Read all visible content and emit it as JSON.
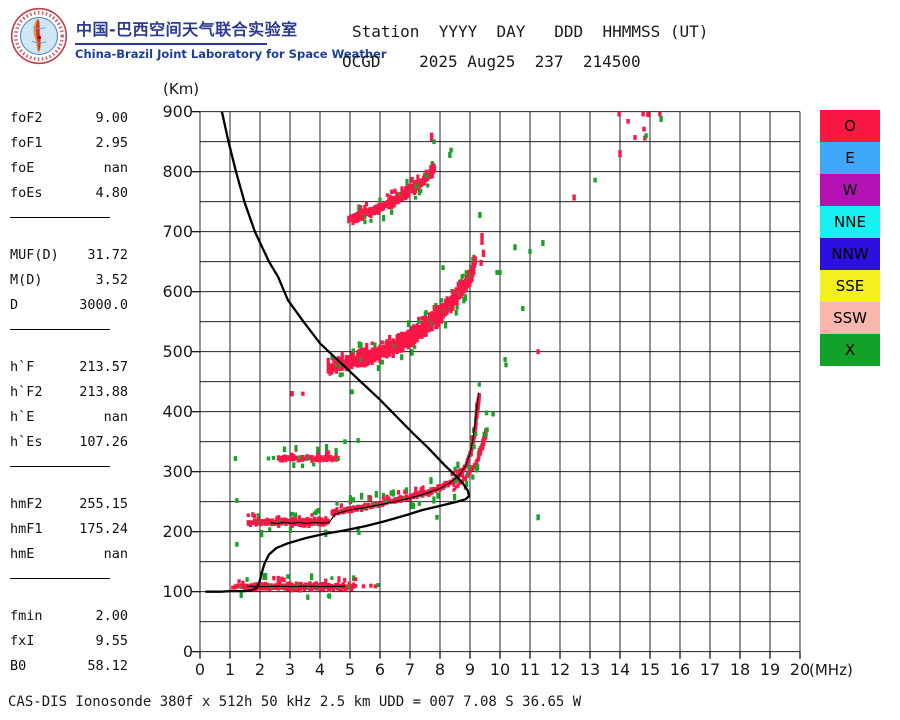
{
  "branding": {
    "title_zh": "中国-巴西空间天气联合实验室",
    "title_en": "China-Brazil Joint Laboratory for Space Weather",
    "title_color": "#2b3a92"
  },
  "header": {
    "line1": "Station  YYYY  DAY   DDD  HHMMSS (UT)",
    "line2": "OCGD    2025 Aug25  237  214500"
  },
  "footer": {
    "text": "CAS-DIS Ionosonde 380f x 512h 50 kHz 2.5 km UDD = 007 7.08 S 36.65 W"
  },
  "parameters": {
    "groups": [
      {
        "rows": [
          [
            "foF2",
            "9.00"
          ],
          [
            "foF1",
            "2.95"
          ],
          [
            "foE",
            "nan"
          ],
          [
            "foEs",
            "4.80"
          ]
        ]
      },
      {
        "rows": [
          [
            "MUF(D)",
            "31.72"
          ],
          [
            "M(D)",
            "3.52"
          ],
          [
            "D",
            "3000.0"
          ]
        ]
      },
      {
        "rows": [
          [
            "h`F",
            "213.57"
          ],
          [
            "h`F2",
            "213.88"
          ],
          [
            "h`E",
            "nan"
          ],
          [
            "h`Es",
            "107.26"
          ]
        ]
      },
      {
        "rows": [
          [
            "hmF2",
            "255.15"
          ],
          [
            "hmF1",
            "175.24"
          ],
          [
            "hmE",
            "nan"
          ]
        ]
      },
      {
        "rows": [
          [
            "fmin",
            "2.00"
          ],
          [
            "fxI",
            "9.55"
          ],
          [
            "B0",
            "58.12"
          ]
        ]
      }
    ]
  },
  "legend": [
    {
      "label": "O",
      "color": "#fb1743"
    },
    {
      "label": "E",
      "color": "#3fa7f7"
    },
    {
      "label": "W",
      "color": "#b412b4"
    },
    {
      "label": "NNE",
      "color": "#18f1f1"
    },
    {
      "label": "NNW",
      "color": "#2b10e0"
    },
    {
      "label": "SSE",
      "color": "#f4f01e"
    },
    {
      "label": "SSW",
      "color": "#f8b6ac"
    },
    {
      "label": "X",
      "color": "#12a22a"
    }
  ],
  "chart_data": {
    "type": "scatter",
    "title": "",
    "xlabel": "(MHz)",
    "ylabel": "(Km)",
    "xlim": [
      0,
      20
    ],
    "ylim": [
      0,
      900
    ],
    "x_ticks": [
      0,
      1,
      2,
      3,
      4,
      5,
      6,
      7,
      8,
      9,
      10,
      11,
      12,
      13,
      14,
      15,
      16,
      17,
      18,
      19,
      20
    ],
    "y_ticks": [
      0,
      100,
      200,
      300,
      400,
      500,
      600,
      700,
      800,
      900
    ],
    "grid": {
      "x_step_mhz": 1,
      "y_step_km": 50
    },
    "echo_colors": {
      "o_mode": "#f81747",
      "x_mode": "#17a426"
    },
    "bands": [
      {
        "name": "Es-first-hop",
        "points": [
          [
            1.1,
            108,
            3.5
          ],
          [
            1.5,
            108,
            4.5
          ],
          [
            2.0,
            109,
            5.5
          ],
          [
            2.6,
            109,
            6
          ],
          [
            3.2,
            108,
            6
          ],
          [
            3.8,
            108,
            6
          ],
          [
            4.4,
            108,
            5.5
          ],
          [
            4.9,
            108,
            5
          ],
          [
            5.25,
            109,
            3.5
          ]
        ]
      },
      {
        "name": "F-flat",
        "points": [
          [
            1.62,
            215,
            3.5
          ],
          [
            2.0,
            216,
            5
          ],
          [
            2.5,
            216,
            5.5
          ],
          [
            3.0,
            216,
            6
          ],
          [
            3.5,
            216,
            6
          ],
          [
            4.0,
            216,
            5.5
          ],
          [
            4.32,
            217,
            5.5
          ]
        ]
      },
      {
        "name": "F-rise-O",
        "points": [
          [
            4.4,
            231,
            5
          ],
          [
            4.7,
            234,
            4.5
          ],
          [
            5.0,
            237,
            4.5
          ],
          [
            5.5,
            241,
            4.5
          ],
          [
            6.0,
            246,
            4.5
          ],
          [
            6.5,
            251,
            4.5
          ],
          [
            7.0,
            257,
            4.5
          ],
          [
            7.5,
            264,
            4.5
          ],
          [
            8.0,
            273,
            4.5
          ],
          [
            8.4,
            284,
            4.5
          ],
          [
            8.7,
            297,
            4.5
          ],
          [
            8.9,
            313,
            5
          ],
          [
            9.05,
            336,
            5
          ],
          [
            9.15,
            362,
            5
          ],
          [
            9.22,
            390,
            5
          ],
          [
            9.28,
            415,
            5
          ],
          [
            9.32,
            432,
            4
          ]
        ]
      },
      {
        "name": "F-rise-X",
        "points": [
          [
            8.45,
            270,
            2.5
          ],
          [
            8.8,
            287,
            2.5
          ],
          [
            9.1,
            305,
            2.5
          ],
          [
            9.3,
            325,
            3
          ],
          [
            9.45,
            345,
            3
          ],
          [
            9.55,
            364,
            3
          ]
        ]
      },
      {
        "name": "F-second-hop",
        "points": [
          [
            4.28,
            471,
            7
          ],
          [
            4.6,
            477,
            9
          ],
          [
            5.0,
            483,
            10
          ],
          [
            5.5,
            490,
            11
          ],
          [
            6.0,
            498,
            11
          ],
          [
            6.5,
            509,
            12
          ],
          [
            7.0,
            523,
            12
          ],
          [
            7.5,
            541,
            12
          ],
          [
            8.0,
            562,
            13
          ],
          [
            8.4,
            582,
            12
          ],
          [
            8.7,
            600,
            11
          ],
          [
            9.0,
            620,
            10
          ],
          [
            9.12,
            640,
            8
          ],
          [
            9.2,
            655,
            6
          ]
        ]
      },
      {
        "name": "Es-third-hop",
        "points": [
          [
            2.62,
            322,
            4
          ],
          [
            3.0,
            322,
            4.5
          ],
          [
            3.4,
            322,
            4.5
          ],
          [
            3.8,
            322,
            4.5
          ],
          [
            4.1,
            322,
            4
          ],
          [
            4.35,
            322,
            4
          ],
          [
            4.55,
            322,
            3
          ],
          [
            4.68,
            321,
            3
          ]
        ]
      },
      {
        "name": "F-third-hop",
        "points": [
          [
            4.97,
            720,
            6
          ],
          [
            5.3,
            726,
            7
          ],
          [
            5.7,
            733,
            7
          ],
          [
            6.0,
            740,
            7
          ],
          [
            6.4,
            750,
            8
          ],
          [
            6.8,
            762,
            8
          ],
          [
            7.2,
            776,
            8
          ],
          [
            7.5,
            788,
            7
          ],
          [
            7.7,
            797,
            7
          ],
          [
            7.85,
            806,
            6
          ]
        ]
      }
    ],
    "scatter": {
      "red": [
        [
          13.97,
          896,
          8
        ],
        [
          14.27,
          884,
          8
        ],
        [
          14.5,
          857,
          8
        ],
        [
          14.77,
          896,
          8
        ],
        [
          14.93,
          896,
          10
        ],
        [
          15.33,
          896,
          8
        ],
        [
          14.8,
          871,
          8
        ],
        [
          14.83,
          856,
          8
        ],
        [
          14.0,
          830,
          12
        ],
        [
          12.47,
          757,
          10
        ],
        [
          3.07,
          430,
          9
        ],
        [
          3.43,
          430,
          7
        ],
        [
          9.4,
          688,
          20
        ],
        [
          9.45,
          664,
          12
        ],
        [
          9.37,
          648,
          10
        ],
        [
          11.27,
          500,
          8
        ],
        [
          7.72,
          858,
          14
        ],
        [
          5.45,
          109,
          6
        ],
        [
          5.7,
          110,
          5
        ],
        [
          5.85,
          109,
          4
        ]
      ],
      "green": [
        [
          13.17,
          786,
          8
        ],
        [
          15.37,
          888,
          10
        ],
        [
          14.87,
          860,
          8
        ],
        [
          9.33,
          728,
          10
        ],
        [
          10.0,
          632,
          8
        ],
        [
          10.5,
          674,
          10
        ],
        [
          11.0,
          667,
          8
        ],
        [
          11.43,
          681,
          10
        ],
        [
          10.76,
          572,
          8
        ],
        [
          11.27,
          224,
          10
        ],
        [
          7.9,
          224,
          8
        ],
        [
          5.27,
          205,
          8
        ],
        [
          5.3,
          198,
          6
        ],
        [
          1.23,
          179,
          8
        ],
        [
          1.23,
          252,
          8
        ],
        [
          4.83,
          350,
          8
        ],
        [
          5.27,
          352,
          8
        ],
        [
          5.07,
          433,
          8
        ],
        [
          8.33,
          828,
          10
        ],
        [
          8.37,
          836,
          8
        ],
        [
          8.1,
          640,
          8
        ],
        [
          9.9,
          632,
          8
        ],
        [
          10.17,
          487,
          8
        ],
        [
          10.2,
          478,
          8
        ],
        [
          9.55,
          398,
          8
        ],
        [
          9.57,
          370,
          8
        ],
        [
          9.77,
          396,
          8
        ],
        [
          7.8,
          850,
          8
        ],
        [
          1.18,
          322,
          8
        ],
        [
          2.28,
          322,
          6
        ],
        [
          2.45,
          323,
          6
        ],
        [
          5.93,
          111,
          5
        ]
      ]
    },
    "profile_points": [
      [
        0.18,
        100
      ],
      [
        0.7,
        100
      ],
      [
        1.0,
        101
      ],
      [
        1.5,
        101
      ],
      [
        1.75,
        103
      ],
      [
        1.9,
        107
      ],
      [
        1.98,
        116
      ],
      [
        2.05,
        130
      ],
      [
        2.15,
        147
      ],
      [
        2.3,
        162
      ],
      [
        2.55,
        173
      ],
      [
        2.95,
        181
      ],
      [
        3.5,
        189
      ],
      [
        4.1,
        196
      ],
      [
        4.8,
        202
      ],
      [
        5.5,
        209
      ],
      [
        6.2,
        218
      ],
      [
        6.9,
        228
      ],
      [
        7.4,
        236
      ],
      [
        8.0,
        243
      ],
      [
        8.5,
        249
      ],
      [
        8.85,
        254
      ],
      [
        8.97,
        259
      ],
      [
        8.93,
        268
      ],
      [
        8.73,
        283
      ],
      [
        8.45,
        297
      ],
      [
        8.17,
        310
      ],
      [
        7.6,
        340
      ],
      [
        7.1,
        364
      ],
      [
        6.55,
        392
      ],
      [
        6.0,
        420
      ],
      [
        5.4,
        448
      ],
      [
        4.83,
        475
      ],
      [
        4.4,
        495
      ],
      [
        4.0,
        514
      ],
      [
        3.45,
        550
      ],
      [
        2.93,
        586
      ],
      [
        2.6,
        625
      ],
      [
        2.3,
        650
      ],
      [
        1.83,
        700
      ],
      [
        1.48,
        750
      ],
      [
        1.2,
        800
      ],
      [
        0.95,
        850
      ],
      [
        0.73,
        900
      ]
    ],
    "fitted_traces": [
      [
        [
          1.57,
          109
        ],
        [
          2.1,
          108.5
        ],
        [
          2.6,
          109
        ],
        [
          3.1,
          108.5
        ],
        [
          3.6,
          109
        ],
        [
          4.1,
          108.5
        ],
        [
          4.83,
          109
        ]
      ],
      [
        [
          2.35,
          215
        ],
        [
          2.55,
          213.5
        ],
        [
          2.8,
          215.5
        ],
        [
          3.05,
          214
        ],
        [
          3.3,
          215.5
        ],
        [
          3.55,
          214
        ],
        [
          3.8,
          215.5
        ],
        [
          4.05,
          214.5
        ],
        [
          4.3,
          215
        ],
        [
          4.4,
          222
        ],
        [
          4.5,
          229
        ],
        [
          4.75,
          233
        ],
        [
          5.0,
          236
        ],
        [
          5.5,
          240
        ],
        [
          6.0,
          245
        ],
        [
          6.5,
          250
        ],
        [
          7.0,
          256
        ],
        [
          7.5,
          263
        ],
        [
          8.0,
          272
        ],
        [
          8.35,
          282
        ],
        [
          8.65,
          294
        ],
        [
          8.85,
          310
        ],
        [
          9.0,
          330
        ],
        [
          9.1,
          355
        ],
        [
          9.18,
          385
        ],
        [
          9.24,
          412
        ],
        [
          9.28,
          432
        ]
      ]
    ]
  }
}
